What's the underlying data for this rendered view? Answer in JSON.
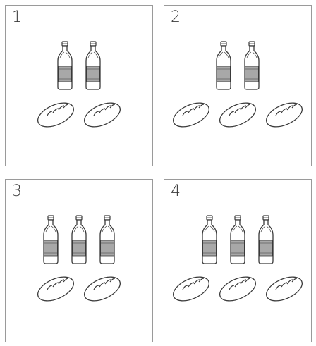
{
  "panels": [
    {
      "number": "1",
      "bottles": 2,
      "loaves": 2
    },
    {
      "number": "2",
      "bottles": 2,
      "loaves": 3
    },
    {
      "number": "3",
      "bottles": 3,
      "loaves": 2
    },
    {
      "number": "4",
      "bottles": 3,
      "loaves": 3
    }
  ],
  "icons": {
    "bottle": "bottle-icon",
    "loaf": "bread-loaf-icon"
  },
  "colors": {
    "line": "#3a3a3a",
    "label_fill": "#a8a8a8",
    "border": "#9a9a9a"
  }
}
